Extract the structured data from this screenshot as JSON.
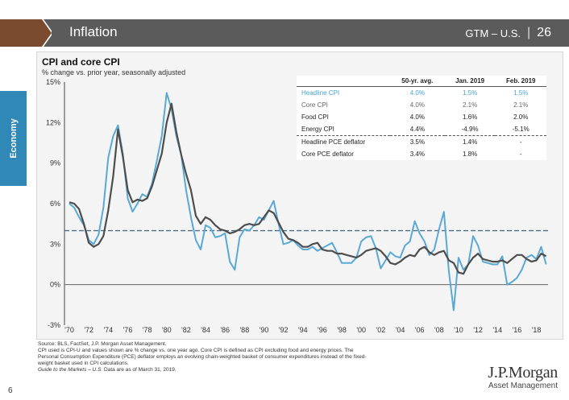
{
  "header": {
    "title": "Inflation",
    "doc_code": "GTM – U.S.",
    "page_label": "26",
    "accent_brown": "#7a4a2e",
    "bar_color": "#5b5b5b"
  },
  "side_tab": {
    "label": "Economy",
    "color": "#2f88b5"
  },
  "chart": {
    "title": "CPI and core CPI",
    "subtitle": "% change vs. prior year, seasonally adjusted"
  },
  "chart_data": {
    "type": "line",
    "x_ticks": [
      "'70",
      "'72",
      "'74",
      "'76",
      "'78",
      "'80",
      "'82",
      "'84",
      "'86",
      "'88",
      "'90",
      "'92",
      "'94",
      "'96",
      "'98",
      "'00",
      "'02",
      "'04",
      "'06",
      "'08",
      "'10",
      "'12",
      "'14",
      "'16",
      "'18"
    ],
    "y_ticks": [
      "15%",
      "12%",
      "9%",
      "6%",
      "3%",
      "0%",
      "-3%"
    ],
    "ylim": [
      -3,
      15
    ],
    "xlim": [
      1969.5,
      2019.2
    ],
    "reference_line": {
      "value": 4.0,
      "style": "dashed"
    },
    "series": [
      {
        "name": "Headline CPI",
        "color": "#5aa9d4",
        "x": [
          1970,
          1970.5,
          1971,
          1971.5,
          1972,
          1972.5,
          1973,
          1973.5,
          1974,
          1974.5,
          1975,
          1975.5,
          1976,
          1976.5,
          1977,
          1977.5,
          1978,
          1978.5,
          1979,
          1979.5,
          1980,
          1980.5,
          1981,
          1981.5,
          1982,
          1982.5,
          1983,
          1983.5,
          1984,
          1984.5,
          1985,
          1985.5,
          1986,
          1986.5,
          1987,
          1987.5,
          1988,
          1988.5,
          1989,
          1989.5,
          1990,
          1990.5,
          1991,
          1991.5,
          1992,
          1992.5,
          1993,
          1993.5,
          1994,
          1994.5,
          1995,
          1995.5,
          1996,
          1996.5,
          1997,
          1997.5,
          1998,
          1998.5,
          1999,
          1999.5,
          2000,
          2000.5,
          2001,
          2001.5,
          2002,
          2002.5,
          2003,
          2003.5,
          2004,
          2004.5,
          2005,
          2005.5,
          2006,
          2006.5,
          2007,
          2007.5,
          2008,
          2008.5,
          2009,
          2009.5,
          2010,
          2010.5,
          2011,
          2011.5,
          2012,
          2012.5,
          2013,
          2013.5,
          2014,
          2014.5,
          2015,
          2015.5,
          2016,
          2016.5,
          2017,
          2017.5,
          2018,
          2018.5,
          2019
        ],
        "y": [
          6.0,
          5.7,
          5.0,
          4.4,
          3.3,
          3.0,
          3.7,
          5.7,
          9.4,
          11.0,
          11.8,
          9.7,
          6.4,
          5.4,
          6.0,
          6.7,
          6.5,
          7.5,
          9.2,
          11.0,
          14.2,
          13.0,
          11.0,
          9.6,
          7.0,
          5.0,
          3.3,
          2.6,
          4.4,
          4.2,
          3.5,
          3.6,
          3.8,
          1.7,
          1.1,
          3.5,
          4.1,
          4.0,
          4.4,
          5.0,
          4.8,
          5.5,
          6.2,
          4.5,
          3.0,
          3.1,
          3.3,
          2.9,
          2.6,
          2.6,
          2.8,
          2.5,
          2.7,
          2.9,
          3.1,
          2.4,
          1.6,
          1.6,
          1.6,
          2.0,
          3.2,
          3.5,
          3.6,
          2.7,
          1.2,
          1.8,
          2.4,
          2.1,
          2.0,
          2.9,
          3.2,
          4.7,
          3.8,
          3.2,
          2.2,
          2.6,
          4.1,
          5.4,
          1.0,
          -1.9,
          2.0,
          1.1,
          1.5,
          3.6,
          2.9,
          1.7,
          1.6,
          1.5,
          1.5,
          2.1,
          0.0,
          0.2,
          0.5,
          1.1,
          2.0,
          2.2,
          1.9,
          2.8,
          1.5
        ]
      },
      {
        "name": "Core CPI",
        "color": "#4d4d4d",
        "x": [
          1970,
          1970.5,
          1971,
          1971.5,
          1972,
          1972.5,
          1973,
          1973.5,
          1974,
          1974.5,
          1975,
          1975.5,
          1976,
          1976.5,
          1977,
          1977.5,
          1978,
          1978.5,
          1979,
          1979.5,
          1980,
          1980.5,
          1981,
          1981.5,
          1982,
          1982.5,
          1983,
          1983.5,
          1984,
          1984.5,
          1985,
          1985.5,
          1986,
          1986.5,
          1987,
          1987.5,
          1988,
          1988.5,
          1989,
          1989.5,
          1990,
          1990.5,
          1991,
          1991.5,
          1992,
          1992.5,
          1993,
          1993.5,
          1994,
          1994.5,
          1995,
          1995.5,
          1996,
          1996.5,
          1997,
          1997.5,
          1998,
          1998.5,
          1999,
          1999.5,
          2000,
          2000.5,
          2001,
          2001.5,
          2002,
          2002.5,
          2003,
          2003.5,
          2004,
          2004.5,
          2005,
          2005.5,
          2006,
          2006.5,
          2007,
          2007.5,
          2008,
          2008.5,
          2009,
          2009.5,
          2010,
          2010.5,
          2011,
          2011.5,
          2012,
          2012.5,
          2013,
          2013.5,
          2014,
          2014.5,
          2015,
          2015.5,
          2016,
          2016.5,
          2017,
          2017.5,
          2018,
          2018.5,
          2019
        ],
        "y": [
          6.1,
          6.0,
          5.6,
          4.5,
          3.1,
          2.8,
          3.0,
          3.6,
          5.5,
          8.0,
          11.5,
          9.5,
          7.0,
          6.1,
          6.3,
          6.2,
          6.4,
          7.3,
          8.5,
          9.7,
          12.0,
          13.4,
          11.3,
          9.6,
          8.2,
          7.0,
          5.1,
          4.5,
          5.0,
          4.8,
          4.4,
          4.1,
          4.0,
          3.8,
          3.9,
          4.1,
          4.4,
          4.5,
          4.4,
          4.5,
          5.0,
          5.5,
          5.3,
          4.6,
          3.9,
          3.4,
          3.3,
          3.1,
          2.8,
          2.8,
          3.0,
          3.1,
          2.6,
          2.5,
          2.5,
          2.3,
          2.3,
          2.2,
          2.1,
          2.0,
          2.2,
          2.5,
          2.6,
          2.7,
          2.5,
          2.1,
          1.6,
          1.5,
          1.7,
          2.0,
          2.2,
          2.1,
          2.6,
          2.8,
          2.4,
          2.2,
          2.4,
          2.5,
          1.8,
          1.6,
          0.9,
          0.8,
          1.5,
          2.0,
          2.3,
          1.9,
          1.8,
          1.7,
          1.7,
          1.8,
          1.6,
          1.9,
          2.2,
          2.2,
          1.9,
          1.7,
          1.8,
          2.3,
          2.1
        ]
      }
    ]
  },
  "table": {
    "headers": [
      "",
      "50-yr. avg.",
      "Jan. 2019",
      "Feb. 2019"
    ],
    "rows": [
      {
        "label": "Headline CPI",
        "avg": "4.0%",
        "jan": "1.5%",
        "feb": "1.5%",
        "style": "blue"
      },
      {
        "label": "Core CPI",
        "avg": "4.0%",
        "jan": "2.1%",
        "feb": "2.1%",
        "style": "gray"
      },
      {
        "label": "Food CPI",
        "avg": "4.0%",
        "jan": "1.6%",
        "feb": "2.0%",
        "style": ""
      },
      {
        "label": "Energy CPI",
        "avg": "4.4%",
        "jan": "-4.9%",
        "feb": "-5.1%",
        "style": "sep"
      },
      {
        "label": "Headline PCE deflator",
        "avg": "3.5%",
        "jan": "1.4%",
        "feb": "-",
        "style": ""
      },
      {
        "label": "Core PCE deflator",
        "avg": "3.4%",
        "jan": "1.8%",
        "feb": "-",
        "style": ""
      }
    ]
  },
  "footer": {
    "line1": "Source: BLS, FactSet, J.P. Morgan Asset Management.",
    "line2": "CPI used is CPI-U and values shown are % change vs. one year ago. Core CPI is defined as CPI excluding food and energy prices. The",
    "line3": "Personal Consumption Expenditure (PCE) deflator employs an evolving chain-weighted basket of consumer expenditures instead of the fixed-",
    "line4": "weight basket used in CPI calculations.",
    "line5_italic": "Guide to the Markets – U.S.",
    "line5_rest": " Data are as of March 31, 2019."
  },
  "page_number": "6",
  "logo": {
    "brand": "J.P.Morgan",
    "sub": "Asset Management"
  }
}
